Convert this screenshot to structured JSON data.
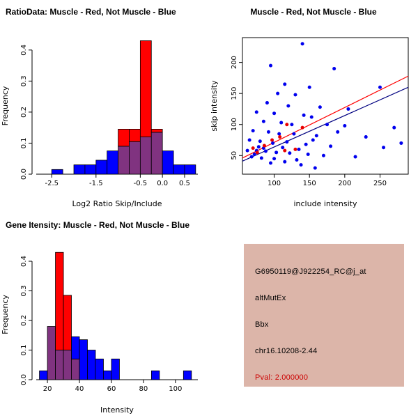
{
  "page": {
    "background": "#FFFFFF"
  },
  "panels": {
    "ratio_hist": {
      "title": "RatioData: Muscle - Red, Not Muscle - Blue"
    },
    "scatter": {
      "title": "Muscle - Red, Not Muscle - Blue"
    },
    "gene_hist": {
      "title": "Gene Itensity: Muscle - Red, Not Muscle - Blue"
    },
    "info": {
      "background": "#DCB5A9",
      "lines": [
        {
          "text": "G6950119@J922254_RC@j_at",
          "color": "#000000"
        },
        {
          "text": "altMutEx",
          "color": "#000000"
        },
        {
          "text": "Bbx",
          "color": "#000000"
        },
        {
          "text": "chr16.10208-2.44",
          "color": "#000000"
        },
        {
          "text": "Pval: 2.000000",
          "color": "#CC0000"
        }
      ]
    }
  },
  "chart_data": [
    {
      "id": "ratio_hist",
      "type": "histogram",
      "title": "RatioData: Muscle - Red, Not Muscle - Blue",
      "xlabel": "Log2 Ratio Skip/Include",
      "ylabel": "Frequency",
      "xlim": [
        -2.85,
        0.8
      ],
      "ylim": [
        0,
        0.44
      ],
      "xticks": [
        -2.5,
        -1.5,
        -0.5,
        0,
        0.5
      ],
      "xtick_labels": [
        "-2.5",
        "-1.5",
        "-0.5",
        "0.0",
        "0.5"
      ],
      "yticks": [
        0,
        0.1,
        0.2,
        0.3,
        0.4
      ],
      "ytick_labels": [
        "0.0",
        "0.1",
        "0.2",
        "0.3",
        "0.4"
      ],
      "bin_start": -2.75,
      "bin_width": 0.25,
      "grid": false,
      "series": [
        {
          "name": "Not Muscle",
          "color": "#0000FF",
          "values": [
            0,
            0.015,
            0,
            0.03,
            0.03,
            0.045,
            0.075,
            0.09,
            0.105,
            0.12,
            0.135,
            0.075,
            0.03,
            0.03
          ]
        },
        {
          "name": "Muscle",
          "color": "#FF0000",
          "values": [
            0,
            0,
            0,
            0,
            0,
            0,
            0,
            0.145,
            0.145,
            0.43,
            0.145,
            0,
            0,
            0
          ]
        }
      ],
      "overlap_color": "#803380"
    },
    {
      "id": "scatter",
      "type": "scatter",
      "title": "Muscle - Red, Not Muscle - Blue",
      "xlabel": "include intensity",
      "ylabel": "skip intensity",
      "xlim": [
        55,
        290
      ],
      "ylim": [
        20,
        240
      ],
      "xticks": [
        100,
        150,
        200,
        250
      ],
      "xtick_labels": [
        "100",
        "150",
        "200",
        "250"
      ],
      "yticks": [
        50,
        100,
        150,
        200
      ],
      "ytick_labels": [
        "50",
        "100",
        "150",
        "200"
      ],
      "grid": false,
      "series": [
        {
          "name": "Not Muscle",
          "color": "#0000EE",
          "points": [
            [
              62,
              58
            ],
            [
              65,
              75
            ],
            [
              68,
              48
            ],
            [
              70,
              90
            ],
            [
              72,
              52
            ],
            [
              75,
              120
            ],
            [
              75,
              58
            ],
            [
              78,
              64
            ],
            [
              80,
              73
            ],
            [
              82,
              46
            ],
            [
              85,
              105
            ],
            [
              85,
              62
            ],
            [
              88,
              57
            ],
            [
              90,
              135
            ],
            [
              92,
              88
            ],
            [
              95,
              195
            ],
            [
              95,
              38
            ],
            [
              98,
              70
            ],
            [
              100,
              118
            ],
            [
              100,
              45
            ],
            [
              103,
              55
            ],
            [
              105,
              150
            ],
            [
              107,
              85
            ],
            [
              110,
              103
            ],
            [
              112,
              63
            ],
            [
              115,
              165
            ],
            [
              115,
              40
            ],
            [
              118,
              72
            ],
            [
              120,
              130
            ],
            [
              122,
              54
            ],
            [
              125,
              100
            ],
            [
              128,
              85
            ],
            [
              130,
              148
            ],
            [
              132,
              43
            ],
            [
              135,
              60
            ],
            [
              138,
              35
            ],
            [
              140,
              230
            ],
            [
              142,
              115
            ],
            [
              145,
              68
            ],
            [
              148,
              52
            ],
            [
              150,
              160
            ],
            [
              153,
              112
            ],
            [
              155,
              75
            ],
            [
              158,
              30
            ],
            [
              160,
              82
            ],
            [
              165,
              128
            ],
            [
              170,
              50
            ],
            [
              175,
              100
            ],
            [
              180,
              65
            ],
            [
              185,
              190
            ],
            [
              190,
              88
            ],
            [
              200,
              98
            ],
            [
              205,
              125
            ],
            [
              215,
              48
            ],
            [
              230,
              80
            ],
            [
              250,
              160
            ],
            [
              255,
              63
            ],
            [
              270,
              95
            ],
            [
              280,
              70
            ]
          ]
        },
        {
          "name": "Muscle",
          "color": "#E80000",
          "points": [
            [
              70,
              62
            ],
            [
              76,
              55
            ],
            [
              86,
              66
            ],
            [
              97,
              75
            ],
            [
              108,
              80
            ],
            [
              118,
              100
            ],
            [
              130,
              60
            ],
            [
              140,
              95
            ],
            [
              115,
              58
            ]
          ]
        }
      ],
      "lines": [
        {
          "name": "muscle-fit",
          "color": "#FF0000",
          "x": [
            55,
            290
          ],
          "y": [
            46,
            178
          ]
        },
        {
          "name": "not-muscle-fit",
          "color": "#000080",
          "x": [
            55,
            290
          ],
          "y": [
            41,
            160
          ]
        }
      ]
    },
    {
      "id": "gene_hist",
      "type": "histogram",
      "title": "Gene Itensity: Muscle - Red, Not Muscle - Blue",
      "xlabel": "Intensity",
      "ylabel": "Frequency",
      "xlim": [
        13,
        114
      ],
      "ylim": [
        0,
        0.44
      ],
      "xticks": [
        20,
        40,
        60,
        80,
        100
      ],
      "xtick_labels": [
        "20",
        "40",
        "60",
        "80",
        "100"
      ],
      "yticks": [
        0,
        0.1,
        0.2,
        0.3,
        0.4
      ],
      "ytick_labels": [
        "0.0",
        "0.1",
        "0.2",
        "0.3",
        "0.4"
      ],
      "bin_start": 15,
      "bin_width": 5,
      "grid": false,
      "series": [
        {
          "name": "Not Muscle",
          "color": "#0000FF",
          "values": [
            0.03,
            0.18,
            0.1,
            0.1,
            0.145,
            0.135,
            0.1,
            0.07,
            0.03,
            0.07,
            0,
            0,
            0,
            0,
            0.03,
            0,
            0,
            0,
            0.03
          ]
        },
        {
          "name": "Muscle",
          "color": "#FF0000",
          "values": [
            0,
            0.18,
            0.43,
            0.285,
            0.07,
            0,
            0,
            0,
            0,
            0,
            0,
            0,
            0,
            0,
            0,
            0,
            0,
            0,
            0
          ]
        }
      ],
      "overlap_color": "#803380"
    }
  ]
}
